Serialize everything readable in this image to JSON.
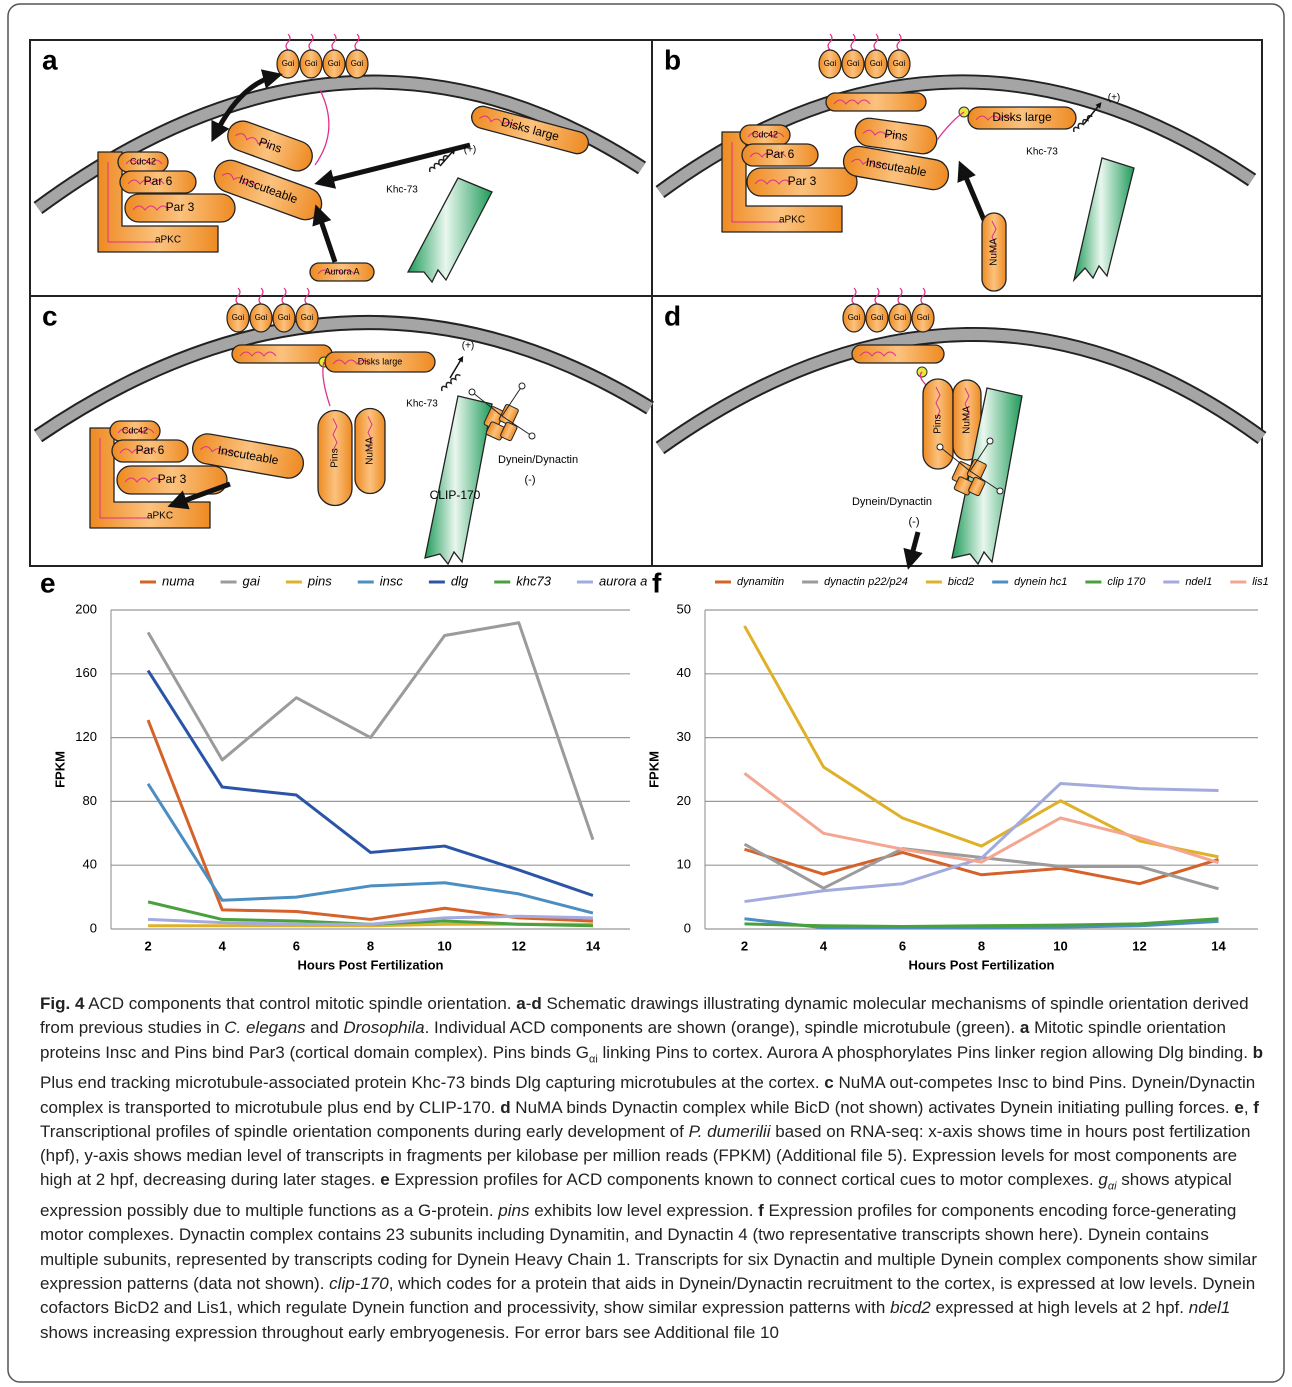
{
  "panels": [
    {
      "letter": "a",
      "labels": {
        "gai": "Gαi",
        "cdc42": "Cdc42",
        "par6": "Par 6",
        "par3": "Par 3",
        "apkc": "aPKC",
        "pins": "Pins",
        "insc": "Inscuteable",
        "dlg": "Disks large",
        "khc": "Khc-73",
        "plus": "(+)",
        "aurora": "Aurora A"
      }
    },
    {
      "letter": "b",
      "labels": {
        "gai": "Gαi",
        "cdc42": "Cdc42",
        "par6": "Par 6",
        "par3": "Par 3",
        "apkc": "aPKC",
        "pins": "Pins",
        "insc": "Inscuteable",
        "dlg": "Disks large",
        "khc": "Khc-73",
        "plus": "(+)",
        "numa": "NuMA"
      }
    },
    {
      "letter": "c",
      "labels": {
        "gai": "Gαi",
        "cdc42": "Cdc42",
        "par6": "Par 6",
        "par3": "Par 3",
        "apkc": "aPKC",
        "insc": "Inscuteable",
        "pins": "Pins",
        "numa": "NuMA",
        "dlg": "Disks large",
        "khc": "Khc-73",
        "plus": "(+)",
        "clip": "CLIP-170",
        "dynein": "Dynein/Dynactin",
        "minus": "(-)"
      }
    },
    {
      "letter": "d",
      "labels": {
        "gai": "Gαi",
        "pins": "Pins",
        "numa": "NuMA",
        "dynein": "Dynein/Dynactin",
        "minus": "(-)"
      }
    }
  ],
  "chart_data": [
    {
      "type": "line",
      "panel": "e",
      "x_label": "Hours Post Fertilization",
      "y_label": "FPKM",
      "legend": "top",
      "grid": true,
      "categories": [
        "2",
        "4",
        "6",
        "8",
        "10",
        "12",
        "14"
      ],
      "ylim": [
        0,
        200
      ],
      "yticks": [
        0,
        40,
        80,
        120,
        160,
        200
      ],
      "series": [
        {
          "name": "numa",
          "color": "#d4622a",
          "values": [
            131,
            12,
            11,
            6,
            13,
            7,
            5
          ]
        },
        {
          "name": "gai",
          "color": "#9b9b9b",
          "values": [
            186,
            106,
            145,
            120,
            184,
            192,
            56
          ]
        },
        {
          "name": "pins",
          "color": "#dfb128",
          "values": [
            2,
            2,
            2,
            2,
            3,
            3,
            3
          ]
        },
        {
          "name": "insc",
          "color": "#4b8ec2",
          "values": [
            91,
            18,
            20,
            27,
            29,
            22,
            10
          ]
        },
        {
          "name": "dlg",
          "color": "#2a54a6",
          "values": [
            162,
            89,
            84,
            48,
            52,
            37,
            21
          ]
        },
        {
          "name": "khc73",
          "color": "#4aa03c",
          "values": [
            17,
            6,
            5,
            3,
            5,
            3,
            2
          ]
        },
        {
          "name": "aurora a",
          "color": "#a3aade",
          "values": [
            6,
            4,
            3,
            3,
            7,
            8,
            7
          ]
        }
      ]
    },
    {
      "type": "line",
      "panel": "f",
      "x_label": "Hours Post Fertilization",
      "y_label": "FPKM",
      "legend": "top",
      "grid": true,
      "categories": [
        "2",
        "4",
        "6",
        "8",
        "10",
        "12",
        "14"
      ],
      "ylim": [
        0,
        50
      ],
      "yticks": [
        0,
        10,
        20,
        30,
        40,
        50
      ],
      "series": [
        {
          "name": "dynamitin",
          "color": "#d4622a",
          "values": [
            12.5,
            8.6,
            12,
            8.5,
            9.5,
            7.1,
            10.9
          ]
        },
        {
          "name": "dynactin p22/p24",
          "color": "#9b9b9b",
          "values": [
            13.3,
            6.4,
            12.6,
            11.2,
            9.8,
            9.8,
            6.3
          ]
        },
        {
          "name": "bicd2",
          "color": "#dfb128",
          "values": [
            47.5,
            25.4,
            17.4,
            13,
            20.1,
            13.8,
            11.3
          ]
        },
        {
          "name": "dynein hc1",
          "color": "#4b8ec2",
          "values": [
            1.6,
            0.2,
            0.2,
            0.2,
            0.3,
            0.5,
            1.2
          ]
        },
        {
          "name": "clip 170",
          "color": "#4aa03c",
          "values": [
            0.8,
            0.5,
            0.4,
            0.5,
            0.6,
            0.8,
            1.6
          ]
        },
        {
          "name": "ndel1",
          "color": "#a3aade",
          "values": [
            4.3,
            6,
            7.1,
            11.1,
            22.8,
            22,
            21.7
          ]
        },
        {
          "name": "lis1",
          "color": "#f4a690",
          "values": [
            24.4,
            15,
            12.5,
            10.5,
            17.4,
            14.3,
            10.4
          ]
        }
      ]
    }
  ],
  "caption": {
    "runs": [
      {
        "style": "b",
        "text": "Fig. 4"
      },
      {
        "style": "n",
        "text": " ACD components that control mitotic spindle orientation. "
      },
      {
        "style": "b",
        "text": "a"
      },
      {
        "style": "n",
        "text": "-"
      },
      {
        "style": "b",
        "text": "d"
      },
      {
        "style": "n",
        "text": " Schematic drawings illustrating dynamic molecular mechanisms of spindle orientation derived from previous studies in "
      },
      {
        "style": "i",
        "text": "C. elegans"
      },
      {
        "style": "n",
        "text": " and "
      },
      {
        "style": "i",
        "text": "Drosophila"
      },
      {
        "style": "n",
        "text": ". Individual ACD components are shown (orange), spindle microtubule (green). "
      },
      {
        "style": "b",
        "text": "a"
      },
      {
        "style": "n",
        "text": " Mitotic spindle orientation proteins Insc and Pins bind Par3 (cortical domain complex). Pins binds G"
      },
      {
        "style": "sub",
        "text": "αi"
      },
      {
        "style": "n",
        "text": " linking Pins to cortex. Aurora A phosphorylates Pins linker region allowing Dlg binding. "
      },
      {
        "style": "b",
        "text": "b"
      },
      {
        "style": "n",
        "text": " Plus end tracking microtubule-associated protein Khc-73 binds Dlg capturing microtubules at the cortex. "
      },
      {
        "style": "b",
        "text": "c"
      },
      {
        "style": "n",
        "text": " NuMA out-competes Insc to bind Pins. Dynein/Dynactin complex is transported to microtubule plus end by CLIP-170. "
      },
      {
        "style": "b",
        "text": "d"
      },
      {
        "style": "n",
        "text": " NuMA binds Dynactin complex while BicD (not shown) activates Dynein initiating pulling forces. "
      },
      {
        "style": "b",
        "text": "e"
      },
      {
        "style": "n",
        "text": ", "
      },
      {
        "style": "b",
        "text": "f"
      },
      {
        "style": "n",
        "text": " Transcriptional profiles of spindle orientation components during early development of "
      },
      {
        "style": "i",
        "text": "P. dumerilii"
      },
      {
        "style": "n",
        "text": " based on RNA-seq: x-axis shows time in hours post fertilization (hpf), y-axis shows median level of transcripts in fragments per kilobase per million reads (FPKM) (Additional file 5). Expression levels for most components are high at 2 hpf, decreasing during later stages. "
      },
      {
        "style": "b",
        "text": "e"
      },
      {
        "style": "n",
        "text": " Expression profiles for ACD components known to connect cortical cues to motor complexes. "
      },
      {
        "style": "i",
        "text": "g"
      },
      {
        "style": "isub",
        "text": "αi"
      },
      {
        "style": "n",
        "text": " shows atypical expression possibly due to multiple functions as a G-protein. "
      },
      {
        "style": "i",
        "text": "pins"
      },
      {
        "style": "n",
        "text": " exhibits low level expression. "
      },
      {
        "style": "b",
        "text": "f"
      },
      {
        "style": "n",
        "text": " Expression profiles for components encoding force-generating motor complexes. Dynactin complex contains 23 subunits including Dynamitin, and Dynactin 4 (two representative transcripts shown here). Dynein contains multiple subunits, represented by transcripts coding for Dynein Heavy Chain 1. Transcripts for six Dynactin and multiple Dynein complex components show similar expression patterns (data not shown). "
      },
      {
        "style": "i",
        "text": "clip-170"
      },
      {
        "style": "n",
        "text": ", which codes for a protein that aids in Dynein/Dynactin recruitment to the cortex, is expressed at low levels. Dynein cofactors BicD2 and Lis1, which regulate Dynein function and processivity, show similar expression patterns with "
      },
      {
        "style": "i",
        "text": "bicd2"
      },
      {
        "style": "n",
        "text": " expressed at high levels at 2 hpf. "
      },
      {
        "style": "i",
        "text": "ndel1"
      },
      {
        "style": "n",
        "text": " shows increasing expression throughout early embryogenesis. For error bars see Additional file 10"
      }
    ]
  }
}
